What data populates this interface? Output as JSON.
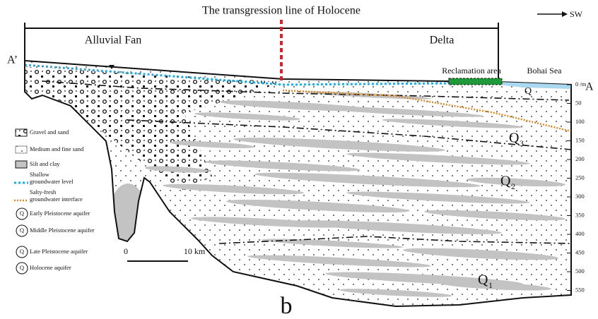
{
  "title": "The transgression line of Holocene",
  "direction": "SW",
  "zones": [
    "Alluvial Fan",
    "Delta"
  ],
  "section_ends": [
    "A’",
    "A"
  ],
  "reclamation": "Reclamation area",
  "sea": "Bohai Sea",
  "depth_ticks": [
    "0 /m",
    "50",
    "100",
    "150",
    "200",
    "250",
    "300",
    "350",
    "400",
    "450",
    "500",
    "550"
  ],
  "aquifers": [
    {
      "label": "Q",
      "sub": ""
    },
    {
      "label": "Q",
      "sub": "3"
    },
    {
      "label": "Q",
      "sub": "2"
    },
    {
      "label": "Q",
      "sub": "1"
    }
  ],
  "scale": {
    "start": "0",
    "end": "10 km"
  },
  "legend": [
    {
      "lines": [
        "Gravel and sand"
      ]
    },
    {
      "lines": [
        "Medium and fine sand"
      ]
    },
    {
      "lines": [
        "Silt and clay"
      ]
    },
    {
      "lines": [
        "Shallow",
        "groundwater level"
      ]
    },
    {
      "lines": [
        "Salty-fresh",
        "groundwater interface"
      ]
    },
    {
      "symbol": "Q",
      "lines": [
        "Early Pleistocene aquifer"
      ]
    },
    {
      "symbol": "Q",
      "lines": [
        "Middle Pleistocene aquifer"
      ]
    },
    {
      "symbol": "Q",
      "lines": [
        "Late Pleistocene aquifer"
      ]
    },
    {
      "symbol": "Q",
      "lines": [
        "Holocene aquifer"
      ]
    }
  ],
  "panel": "b"
}
